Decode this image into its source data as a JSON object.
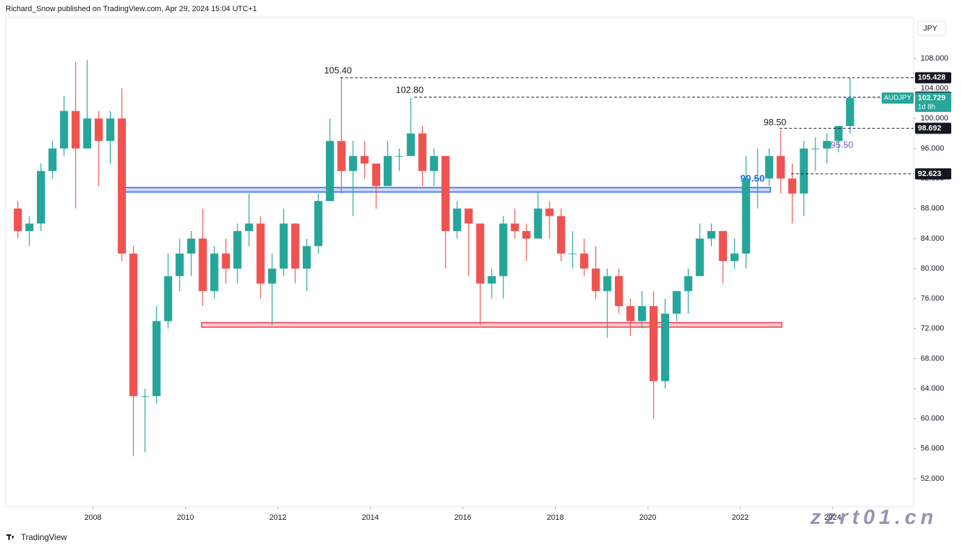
{
  "header": {
    "text": "Richard_Snow published on TradingView.com, Apr 29, 2024 15:04 UTC+1"
  },
  "footer": {
    "brand": "TradingView"
  },
  "watermark": {
    "text": "zzrt01.cn"
  },
  "chart_data": {
    "type": "candlestick",
    "currency": "JPY",
    "up_color": "#26a69a",
    "down_color": "#ef5350",
    "x": [
      2006.25,
      2006.5,
      2006.75,
      2007,
      2007.25,
      2007.5,
      2007.75,
      2008,
      2008.25,
      2008.5,
      2008.75,
      2009,
      2009.25,
      2009.5,
      2009.75,
      2010,
      2010.25,
      2010.5,
      2010.75,
      2011,
      2011.25,
      2011.5,
      2011.75,
      2012,
      2012.25,
      2012.5,
      2012.75,
      2013,
      2013.25,
      2013.5,
      2013.75,
      2014,
      2014.25,
      2014.5,
      2014.75,
      2015,
      2015.25,
      2015.5,
      2015.75,
      2016,
      2016.25,
      2016.5,
      2016.75,
      2017,
      2017.25,
      2017.5,
      2017.75,
      2018,
      2018.25,
      2018.5,
      2018.75,
      2019,
      2019.25,
      2019.5,
      2019.75,
      2020,
      2020.25,
      2020.5,
      2020.75,
      2021,
      2021.25,
      2021.5,
      2021.75,
      2022,
      2022.25,
      2022.5,
      2022.75,
      2023,
      2023.25,
      2023.5,
      2023.75,
      2024,
      2024.25
    ],
    "open": [
      88,
      85,
      86,
      93,
      96,
      101,
      96,
      100,
      97,
      100,
      82,
      63,
      63,
      73,
      79,
      82,
      84,
      77,
      82,
      80,
      85,
      86,
      78,
      80,
      86,
      80,
      83,
      89,
      97,
      93,
      95,
      94,
      91,
      95,
      95,
      98,
      93,
      95,
      85,
      88,
      86,
      78,
      79,
      86,
      85,
      84,
      88,
      87,
      82,
      82,
      80,
      77,
      79,
      75,
      73,
      75,
      65,
      74,
      77,
      79,
      84,
      85,
      81,
      82,
      92,
      92,
      95,
      92,
      90,
      96,
      96,
      97,
      99
    ],
    "high": [
      89,
      87,
      94,
      97,
      103,
      107.5,
      107.8,
      101,
      101,
      104,
      83,
      64,
      75,
      82,
      84,
      85,
      88,
      83,
      84,
      86,
      90,
      87,
      82,
      88,
      86,
      84,
      90,
      100,
      105.4,
      97,
      97,
      94,
      97,
      96,
      102.8,
      99,
      96,
      95,
      89,
      88,
      86,
      80,
      87,
      88,
      86,
      90.3,
      89,
      88,
      85,
      84,
      83,
      80,
      80,
      76,
      77,
      77,
      76,
      77,
      80,
      86,
      86,
      85,
      84,
      95,
      96,
      96,
      98.5,
      94,
      97,
      97.5,
      98,
      99,
      105.428
    ],
    "low": [
      84,
      83,
      85,
      92,
      95,
      88,
      96,
      91,
      94,
      81,
      55,
      55.5,
      62,
      72,
      77,
      79,
      75,
      76,
      78,
      78,
      83,
      76,
      72.5,
      79,
      78,
      77,
      82,
      89,
      90,
      87,
      92,
      88,
      91,
      93,
      95,
      91,
      91,
      80,
      84,
      79,
      72.5,
      76,
      76,
      84,
      81,
      84,
      84,
      81,
      80,
      79,
      76,
      70.8,
      74,
      71,
      72,
      60,
      64,
      73,
      74,
      79,
      83,
      78,
      80,
      80,
      88,
      91,
      90,
      86,
      87,
      93,
      94,
      95.5,
      98
    ],
    "close": [
      85,
      86,
      93,
      96,
      101,
      96,
      100,
      97,
      100,
      82,
      63,
      63,
      73,
      79,
      82,
      84,
      77,
      82,
      80,
      85,
      86,
      78,
      80,
      86,
      80,
      83,
      89,
      97,
      93,
      95,
      94,
      91,
      95,
      95,
      98,
      93,
      95,
      85,
      88,
      86,
      78,
      79,
      86,
      85,
      84,
      88,
      87,
      82,
      82,
      80,
      77,
      79,
      75,
      73,
      75,
      65,
      74,
      77,
      79,
      84,
      85,
      81,
      82,
      92,
      92,
      95,
      92,
      90,
      96,
      96,
      97,
      99,
      102.729
    ],
    "xlim": [
      2006.11,
      2025.75
    ],
    "xticks": [
      2008,
      2010,
      2012,
      2014,
      2016,
      2018,
      2020,
      2022,
      2024
    ],
    "ylim": [
      48.29,
      113.47
    ],
    "yticks": [
      {
        "value": 52,
        "label": "52.000"
      },
      {
        "value": 56,
        "label": "56.000"
      },
      {
        "value": 60,
        "label": "60.000"
      },
      {
        "value": 64,
        "label": "64.000"
      },
      {
        "value": 68,
        "label": "68.000"
      },
      {
        "value": 72,
        "label": "72.000"
      },
      {
        "value": 76,
        "label": "76.000"
      },
      {
        "value": 80,
        "label": "80.000"
      },
      {
        "value": 84,
        "label": "84.000"
      },
      {
        "value": 88,
        "label": "88.000"
      },
      {
        "value": 92,
        "label": "92.000"
      },
      {
        "value": 96,
        "label": "96.000"
      },
      {
        "value": 100,
        "label": "100.000"
      },
      {
        "value": 104,
        "label": "104.000"
      },
      {
        "value": 108,
        "label": "108.000"
      }
    ],
    "levels": [
      {
        "value": 105.428,
        "start": 2013.35
      },
      {
        "value": 102.841,
        "start": 2014.95
      },
      {
        "value": 98.692,
        "start": 2022.85
      },
      {
        "value": 92.623,
        "start": 2023.1
      }
    ],
    "last_price": {
      "symbol": "AUDJPY",
      "value": 102.729,
      "countdown": "1d 8h",
      "color": "#26a69a"
    },
    "zones": [
      {
        "low": 90.2,
        "high": 90.8,
        "start": 2008.7,
        "end": 2022.65,
        "color": "#2962ff",
        "label": "90.50"
      },
      {
        "low": 72.2,
        "high": 72.8,
        "start": 2010.35,
        "end": 2022.9,
        "color": "#f23645"
      }
    ],
    "annotations": [
      {
        "text": "105.40",
        "x": 2013.3,
        "y": 105.4,
        "color": "#131722"
      },
      {
        "text": "102.80",
        "x": 2014.85,
        "y": 102.8,
        "color": "#131722"
      },
      {
        "text": "98.50",
        "x": 2022.75,
        "y": 98.5,
        "color": "#131722"
      },
      {
        "text": "95.50",
        "x": 2024.2,
        "y": 95.5,
        "color": "#7e57c2"
      }
    ]
  }
}
